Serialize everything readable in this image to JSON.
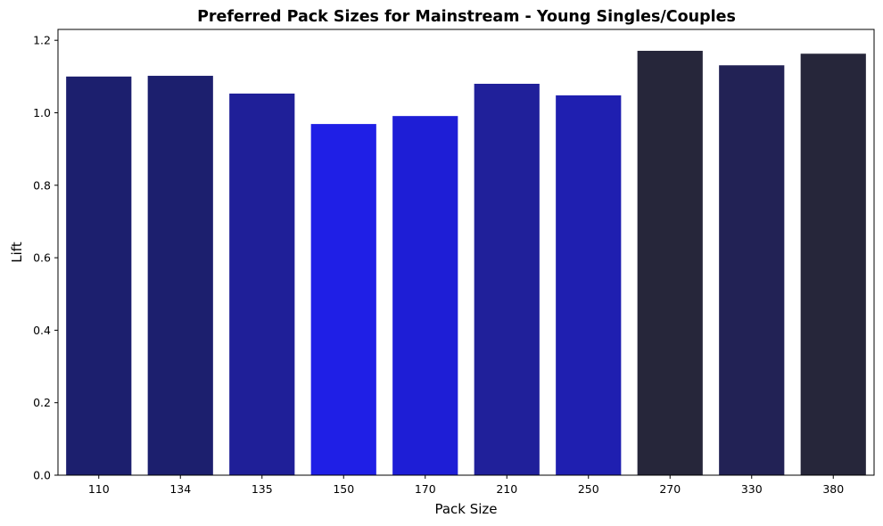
{
  "chart_data": {
    "type": "bar",
    "title": "Preferred Pack Sizes for Mainstream - Young Singles/Couples",
    "xlabel": "Pack Size",
    "ylabel": "Lift",
    "categories": [
      "110",
      "134",
      "135",
      "150",
      "170",
      "210",
      "250",
      "270",
      "330",
      "380"
    ],
    "values": [
      1.1,
      1.102,
      1.053,
      0.969,
      0.991,
      1.08,
      1.048,
      1.171,
      1.131,
      1.163
    ],
    "colors": [
      "#1c1f6e",
      "#1c1f6e",
      "#1f1f98",
      "#1f1fe6",
      "#1e1ed6",
      "#20209a",
      "#1f1fb0",
      "#26263a",
      "#222255",
      "#26263a"
    ],
    "ylim": [
      0,
      1.23
    ],
    "yticks": [
      0.0,
      0.2,
      0.4,
      0.6,
      0.8,
      1.0,
      1.2
    ],
    "ytick_labels": [
      "0.0",
      "0.2",
      "0.4",
      "0.6",
      "0.8",
      "1.0",
      "1.2"
    ],
    "grid": false,
    "legend": "none"
  }
}
